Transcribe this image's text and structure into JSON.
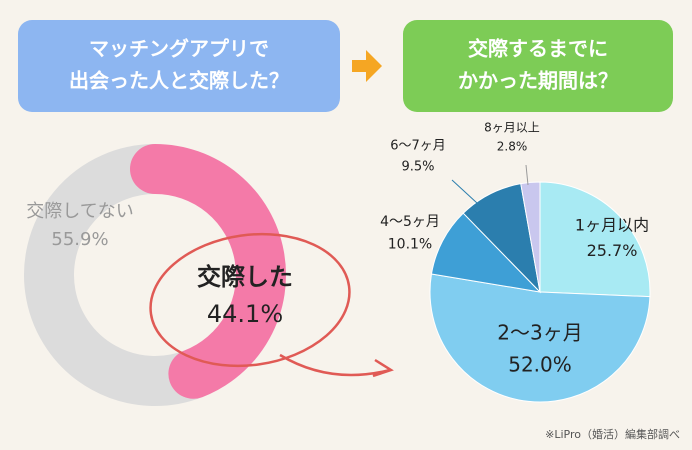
{
  "chart_data": [
    {
      "type": "donut",
      "title": [
        "マッチングアプリで",
        "出会った人と交際した？"
      ],
      "categories": [
        "交際した",
        "交際してない"
      ],
      "values": [
        44.1,
        55.9
      ],
      "value_labels": [
        "44.1%",
        "55.9%"
      ],
      "colors": [
        "#f47aa8",
        "#dcdcdc"
      ]
    },
    {
      "type": "pie",
      "title": [
        "交際するまでに",
        "かかった期間は？"
      ],
      "categories": [
        "1ヶ月以内",
        "2〜3ヶ月",
        "4〜5ヶ月",
        "6〜7ヶ月",
        "8ヶ月以上"
      ],
      "values": [
        25.7,
        52.0,
        10.1,
        9.5,
        2.8
      ],
      "value_labels": [
        "25.7%",
        "52.0%",
        "10.1%",
        "9.5%",
        "2.8%"
      ],
      "colors": [
        "#a8eaf3",
        "#80cdf0",
        "#3e9fd6",
        "#2b7eae",
        "#c9c7ee"
      ]
    }
  ],
  "source": "※LiPro（婚活）編集部調べ"
}
